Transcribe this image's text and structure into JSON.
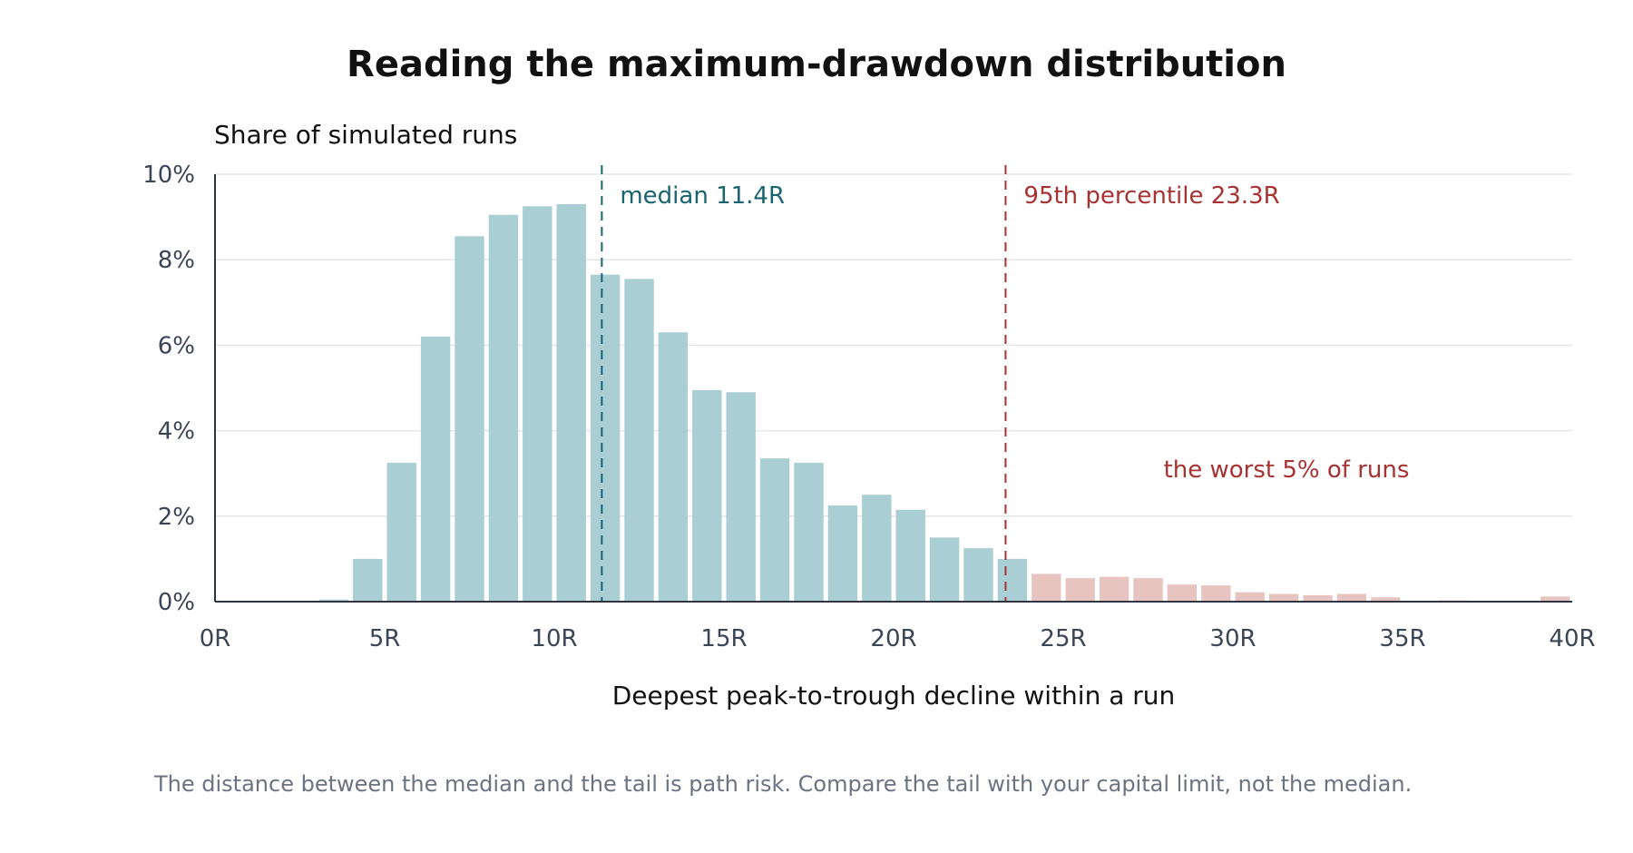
{
  "chart_data": {
    "type": "bar",
    "title": "Reading the maximum-drawdown distribution",
    "ylabel": "Share of simulated runs",
    "xlabel": "Deepest peak-to-trough decline within a run",
    "caption": "The distance between the median and the tail is path risk. Compare the tail with your capital limit, not the median.",
    "x_unit": "R",
    "y_unit": "%",
    "xlim": [
      0,
      40
    ],
    "ylim": [
      0,
      10
    ],
    "x_ticks": [
      "0R",
      "5R",
      "10R",
      "15R",
      "20R",
      "25R",
      "30R",
      "35R",
      "40R"
    ],
    "y_ticks": [
      "0%",
      "2%",
      "4%",
      "6%",
      "8%",
      "10%"
    ],
    "bin_width": 1,
    "bin_starts": [
      0,
      1,
      2,
      3,
      4,
      5,
      6,
      7,
      8,
      9,
      10,
      11,
      12,
      13,
      14,
      15,
      16,
      17,
      18,
      19,
      20,
      21,
      22,
      23,
      24,
      25,
      26,
      27,
      28,
      29,
      30,
      31,
      32,
      33,
      34,
      35,
      36,
      37,
      38,
      39
    ],
    "values": [
      0,
      0,
      0,
      0.05,
      1.0,
      3.25,
      6.2,
      8.55,
      9.05,
      9.25,
      9.3,
      7.65,
      7.55,
      6.3,
      4.95,
      4.9,
      3.35,
      3.25,
      2.25,
      2.5,
      2.15,
      1.5,
      1.25,
      1.0,
      0.65,
      0.55,
      0.58,
      0.55,
      0.4,
      0.38,
      0.22,
      0.18,
      0.15,
      0.18,
      0.1,
      0.02,
      0.03,
      0.02,
      0,
      0.12
    ],
    "tail_start": 23.3,
    "grid": true,
    "colors": {
      "bulk": "#a9ced4",
      "tail": "#e8c4c1",
      "median": "#1a6470",
      "percentile": "#a83232"
    },
    "annotations": {
      "median": {
        "value": 11.4,
        "label": "median 11.4R"
      },
      "p95": {
        "value": 23.3,
        "label": "95th percentile 23.3R"
      },
      "tail_label": "the worst 5% of runs"
    }
  }
}
